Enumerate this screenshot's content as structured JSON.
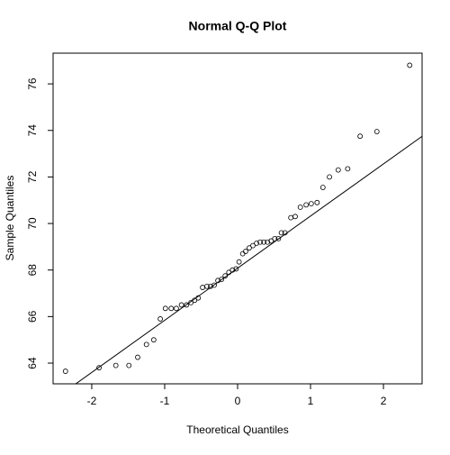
{
  "chart_data": {
    "type": "scatter",
    "title": "Normal Q-Q Plot",
    "x_label": "Theoretical Quantiles",
    "y_label": "Sample Quantiles",
    "x": [
      -2.36,
      -1.9,
      -1.67,
      -1.49,
      -1.37,
      -1.25,
      -1.15,
      -1.06,
      -0.99,
      -0.91,
      -0.84,
      -0.77,
      -0.7,
      -0.64,
      -0.59,
      -0.54,
      -0.48,
      -0.42,
      -0.37,
      -0.32,
      -0.27,
      -0.22,
      -0.17,
      -0.12,
      -0.07,
      -0.02,
      0.02,
      0.07,
      0.11,
      0.16,
      0.21,
      0.26,
      0.31,
      0.36,
      0.41,
      0.46,
      0.51,
      0.56,
      0.6,
      0.65,
      0.73,
      0.79,
      0.86,
      0.94,
      1.01,
      1.09,
      1.17,
      1.26,
      1.38,
      1.51,
      1.68,
      1.91,
      2.36
    ],
    "y": [
      63.65,
      63.8,
      63.9,
      63.9,
      64.25,
      64.8,
      65.0,
      65.9,
      66.35,
      66.35,
      66.35,
      66.5,
      66.5,
      66.6,
      66.7,
      66.8,
      67.25,
      67.3,
      67.3,
      67.35,
      67.55,
      67.6,
      67.75,
      67.9,
      68.0,
      68.05,
      68.35,
      68.7,
      68.8,
      68.95,
      69.05,
      69.15,
      69.2,
      69.2,
      69.2,
      69.25,
      69.35,
      69.35,
      69.6,
      69.6,
      70.25,
      70.3,
      70.7,
      70.8,
      70.85,
      70.9,
      71.55,
      72.0,
      72.3,
      72.35,
      73.75,
      73.95,
      76.8
    ],
    "reference_line": {
      "intercept": 68.08,
      "slope": 2.24
    },
    "xlim": [
      -2.53,
      2.53
    ],
    "ylim": [
      63.11,
      77.32
    ],
    "xticks": [
      -2,
      -1,
      0,
      1,
      2
    ],
    "yticks": [
      64,
      66,
      68,
      70,
      72,
      74,
      76
    ],
    "color": "#000000"
  }
}
